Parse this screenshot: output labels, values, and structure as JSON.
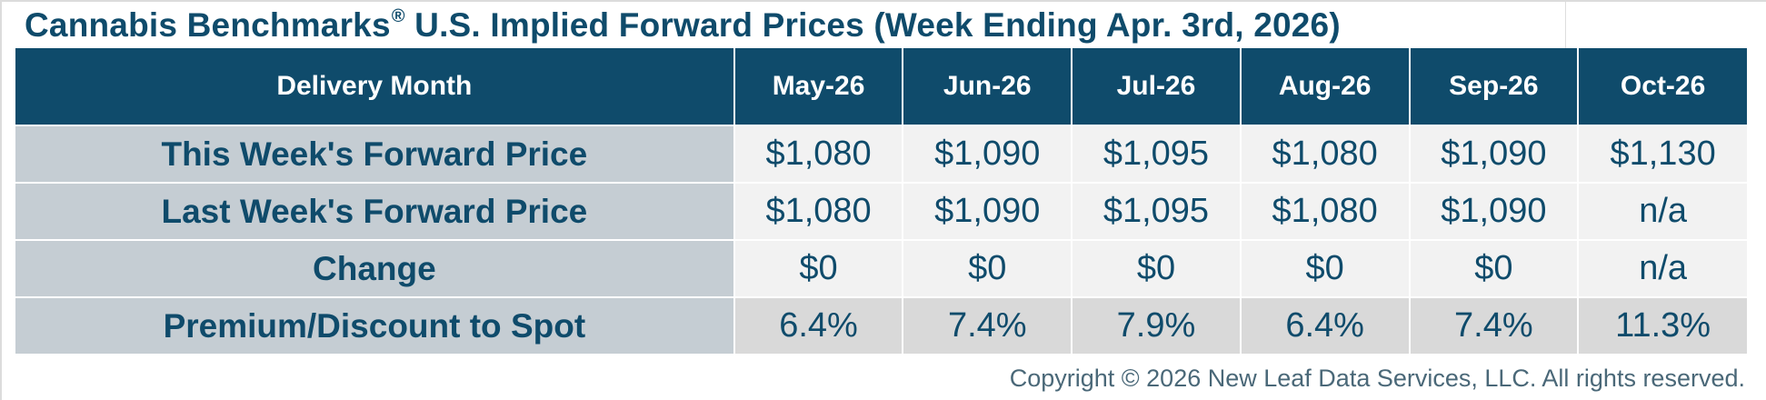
{
  "title": {
    "main": "Cannabis Benchmarks",
    "registered_mark": "®",
    "rest": " U.S. Implied Forward Prices (Week Ending Apr. 3rd, 2026)"
  },
  "table": {
    "header_label": "Delivery Month",
    "columns": [
      "May-26",
      "Jun-26",
      "Jul-26",
      "Aug-26",
      "Sep-26",
      "Oct-26"
    ],
    "rows": [
      {
        "label": "This Week's Forward Price",
        "values": [
          "$1,080",
          "$1,090",
          "$1,095",
          "$1,080",
          "$1,090",
          "$1,130"
        ]
      },
      {
        "label": "Last Week's Forward Price",
        "values": [
          "$1,080",
          "$1,090",
          "$1,095",
          "$1,080",
          "$1,090",
          "n/a"
        ]
      },
      {
        "label": "Change",
        "values": [
          "$0",
          "$0",
          "$0",
          "$0",
          "$0",
          "n/a"
        ]
      },
      {
        "label": "Premium/Discount to Spot",
        "values": [
          "6.4%",
          "7.4%",
          "7.9%",
          "6.4%",
          "7.4%",
          "11.3%"
        ]
      }
    ]
  },
  "footer": {
    "copyright": "Copyright © 2026 New Leaf Data Services, LLC. All rights reserved."
  },
  "colors": {
    "header_bg": "#0f4b6b",
    "header_text": "#ffffff",
    "label_bg": "#c5cdd3",
    "cell_bg_light": "#f2f2f2",
    "cell_bg_dark": "#d9d9d9",
    "text_primary": "#0f4b6b",
    "copyright_text": "#4a6878"
  }
}
